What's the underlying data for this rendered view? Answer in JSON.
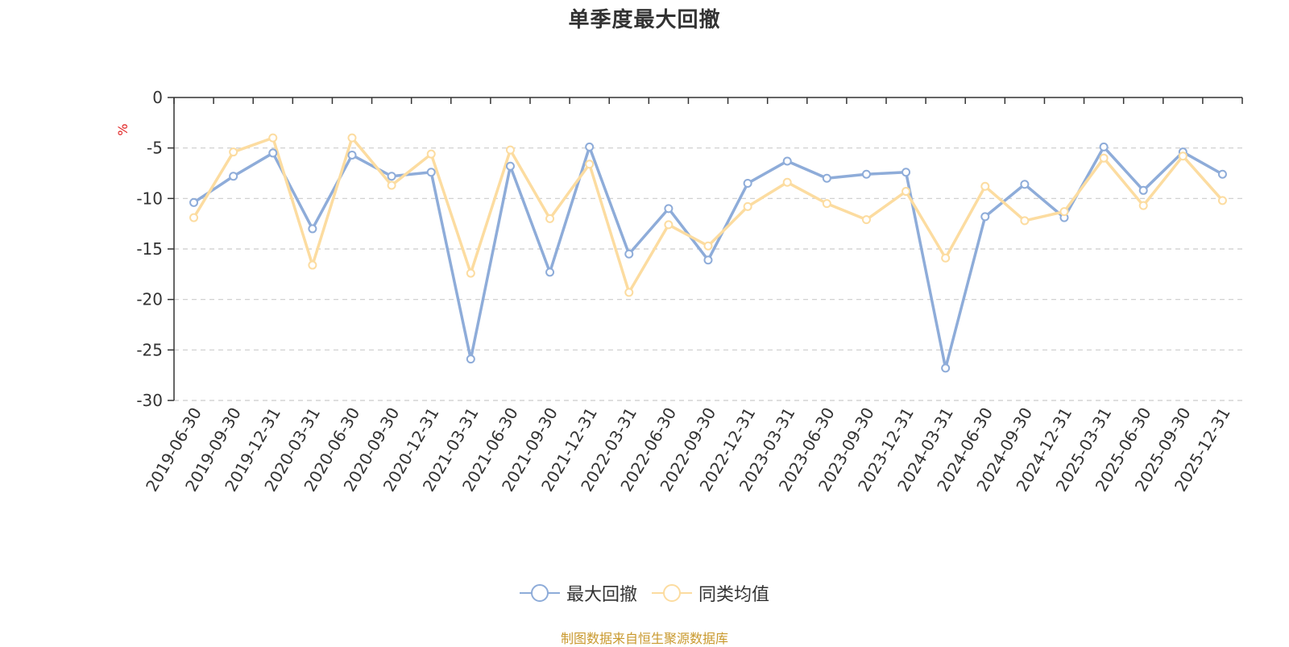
{
  "chart_data": {
    "type": "line",
    "title": "单季度最大回撤",
    "ylabel": "%",
    "xlabel": "",
    "ylim": [
      -30,
      0
    ],
    "yticks": [
      0,
      -5,
      -10,
      -15,
      -20,
      -25,
      -30
    ],
    "grid": true,
    "legend_position": "bottom",
    "categories": [
      "2019-06-30",
      "2019-09-30",
      "2019-12-31",
      "2020-03-31",
      "2020-06-30",
      "2020-09-30",
      "2020-12-31",
      "2021-03-31",
      "2021-06-30",
      "2021-09-30",
      "2021-12-31",
      "2022-03-31",
      "2022-06-30",
      "2022-09-30",
      "2022-12-31",
      "2023-03-31",
      "2023-06-30",
      "2023-09-30",
      "2023-12-31",
      "2024-03-31",
      "2024-06-30",
      "2024-09-30",
      "2024-12-31",
      "2025-03-31",
      "2025-06-30",
      "2025-09-30",
      "2025-12-31"
    ],
    "series": [
      {
        "name": "最大回撤",
        "color": "#8eacd9",
        "values": [
          -10.4,
          -7.8,
          -5.5,
          -13.0,
          -5.7,
          -7.8,
          -7.4,
          -25.9,
          -6.8,
          -17.3,
          -4.9,
          -15.5,
          -11.0,
          -16.1,
          -8.5,
          -6.3,
          -8.0,
          -7.6,
          -7.4,
          -26.8,
          -11.8,
          -8.6,
          -11.9,
          -4.9,
          -9.2,
          -5.4,
          -7.6
        ]
      },
      {
        "name": "同类均值",
        "color": "#fcdca0",
        "values": [
          -11.9,
          -5.4,
          -4.0,
          -16.6,
          -4.0,
          -8.7,
          -5.6,
          -17.4,
          -5.2,
          -12.0,
          -6.6,
          -19.3,
          -12.6,
          -14.7,
          -10.8,
          -8.4,
          -10.5,
          -12.1,
          -9.3,
          -15.9,
          -8.8,
          -12.2,
          -11.3,
          -6.0,
          -10.7,
          -5.8,
          -10.2
        ]
      }
    ]
  },
  "footer": {
    "source": "制图数据来自恒生聚源数据库"
  }
}
